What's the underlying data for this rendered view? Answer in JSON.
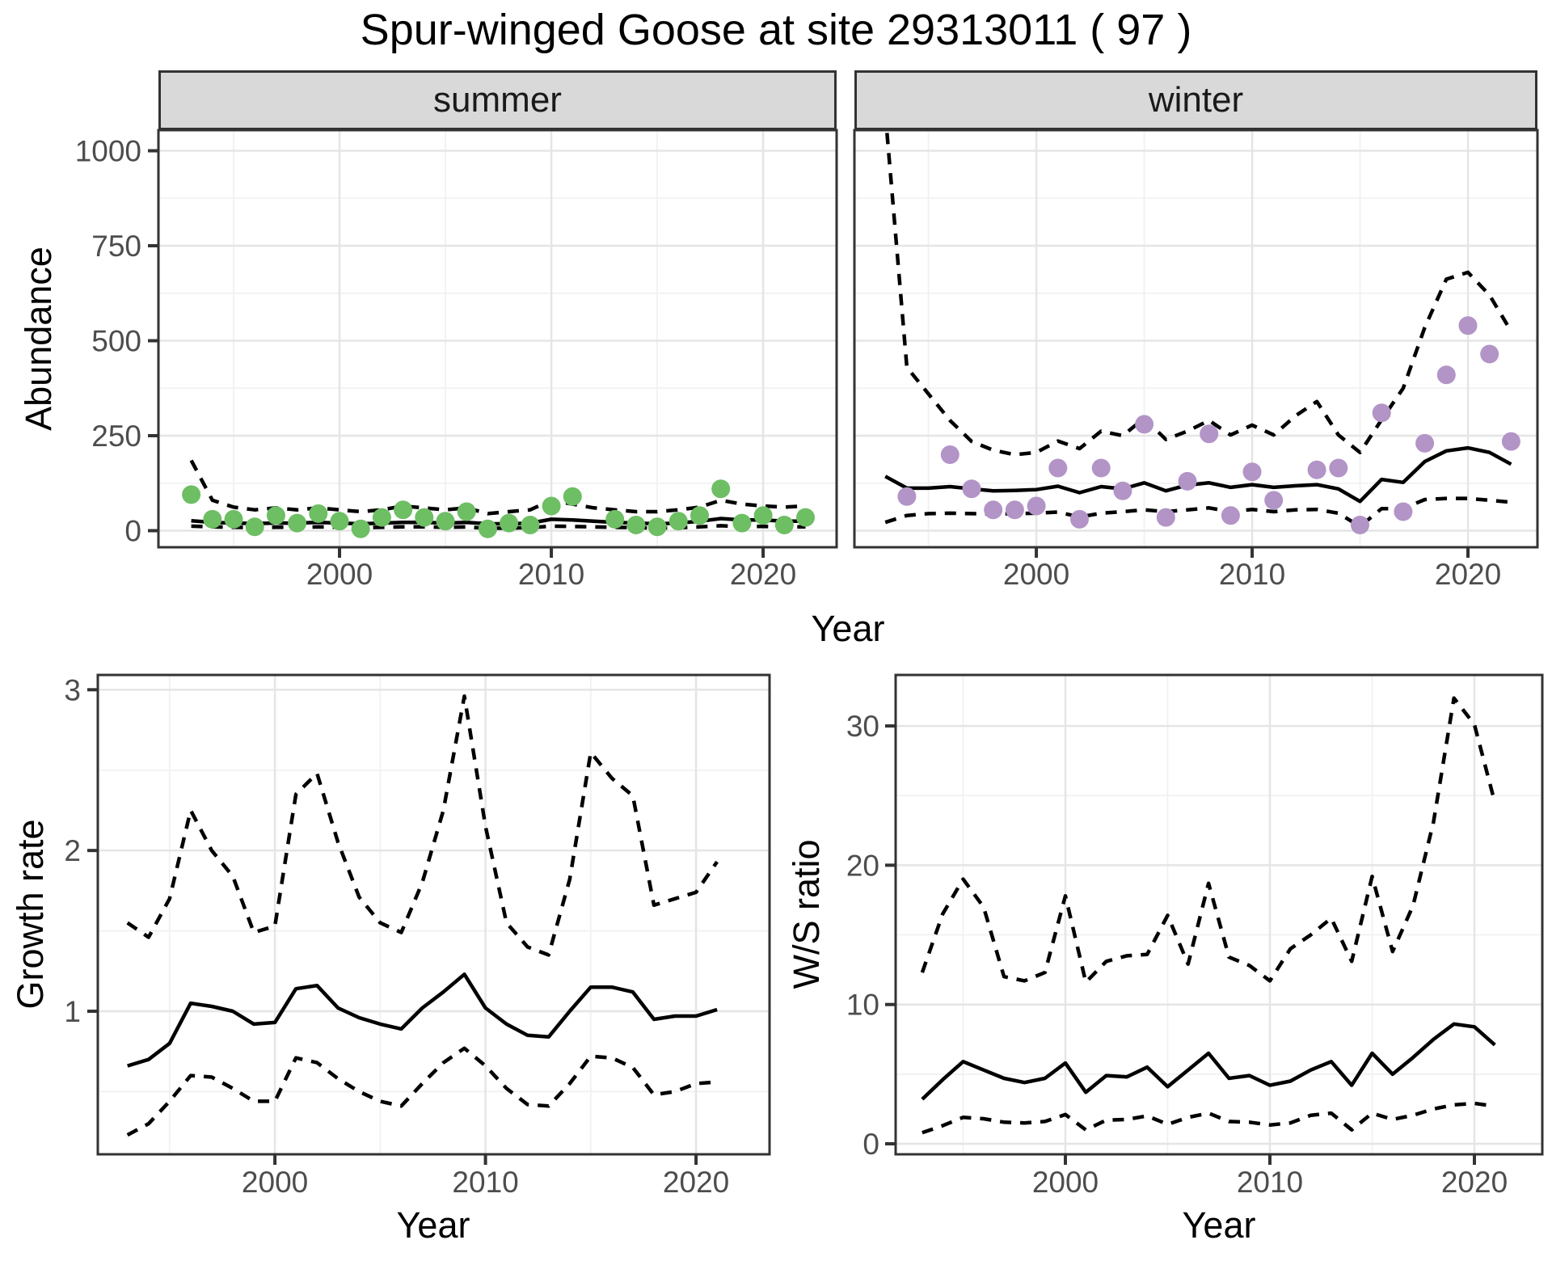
{
  "title": "Spur-winged Goose at site 29313011 ( 97 )",
  "colors": {
    "summer_point": "#6ebe64",
    "winter_point": "#b294c7",
    "line": "#000000",
    "strip_bg": "#d9d9d9",
    "panel_border": "#333333",
    "grid_major": "#e5e5e5",
    "grid_minor": "#f1f1f1",
    "tick_mark": "#333333",
    "tick_label": "#4d4d4d",
    "text": "#111111"
  },
  "chart_data": [
    {
      "id": "summer",
      "type": "scatter",
      "facet_label": "summer",
      "xlabel": "Year",
      "ylabel": "Abundance",
      "ylim": [
        0,
        1050
      ],
      "yticks": [
        0,
        250,
        500,
        750,
        1000
      ],
      "yticks_minor": [
        125,
        375,
        625,
        875
      ],
      "xticks": [
        2000,
        2010,
        2020
      ],
      "xticks_minor": [
        1995,
        2005,
        2015
      ],
      "point_color": "summer_point",
      "years": [
        1993,
        1994,
        1995,
        1996,
        1997,
        1998,
        1999,
        2000,
        2001,
        2002,
        2003,
        2004,
        2005,
        2006,
        2007,
        2008,
        2009,
        2010,
        2011,
        2012,
        2013,
        2014,
        2015,
        2016,
        2017,
        2018,
        2019,
        2020,
        2021,
        2022
      ],
      "points": [
        95,
        30,
        30,
        10,
        40,
        20,
        45,
        25,
        5,
        35,
        55,
        35,
        25,
        50,
        5,
        20,
        15,
        65,
        90,
        null,
        30,
        15,
        10,
        25,
        40,
        110,
        20,
        40,
        15,
        35
      ],
      "mean": [
        26,
        22,
        20,
        19,
        20,
        20,
        22,
        20,
        18,
        20,
        22,
        22,
        20,
        22,
        18,
        18,
        20,
        30,
        28,
        25,
        22,
        20,
        18,
        20,
        25,
        32,
        28,
        28,
        25,
        25
      ],
      "lo": [
        12,
        10,
        9,
        8,
        9,
        9,
        10,
        9,
        8,
        9,
        10,
        10,
        9,
        10,
        6,
        7,
        8,
        12,
        11,
        10,
        9,
        8,
        7,
        8,
        10,
        13,
        11,
        11,
        10,
        10
      ],
      "hi": [
        185,
        80,
        62,
        55,
        60,
        55,
        60,
        55,
        50,
        55,
        65,
        60,
        55,
        60,
        45,
        50,
        55,
        80,
        70,
        60,
        55,
        50,
        50,
        55,
        62,
        80,
        70,
        65,
        62,
        65
      ]
    },
    {
      "id": "winter",
      "type": "scatter",
      "facet_label": "winter",
      "xlabel": "Year",
      "ylabel": "Abundance",
      "ylim": [
        0,
        1050
      ],
      "yticks": [
        0,
        250,
        500,
        750,
        1000
      ],
      "yticks_minor": [
        125,
        375,
        625,
        875
      ],
      "xticks": [
        2000,
        2010,
        2020
      ],
      "xticks_minor": [
        1995,
        2005,
        2015
      ],
      "point_color": "winter_point",
      "years": [
        1993,
        1994,
        1995,
        1996,
        1997,
        1998,
        1999,
        2000,
        2001,
        2002,
        2003,
        2004,
        2005,
        2006,
        2007,
        2008,
        2009,
        2010,
        2011,
        2012,
        2013,
        2014,
        2015,
        2016,
        2017,
        2018,
        2019,
        2020,
        2021,
        2022
      ],
      "points": [
        null,
        90,
        null,
        200,
        110,
        55,
        55,
        65,
        165,
        30,
        165,
        105,
        280,
        35,
        130,
        255,
        40,
        155,
        80,
        null,
        160,
        165,
        15,
        310,
        50,
        230,
        410,
        540,
        465,
        235
      ],
      "mean": [
        143,
        112,
        112,
        116,
        110,
        105,
        106,
        108,
        117,
        100,
        116,
        110,
        126,
        105,
        120,
        126,
        114,
        121,
        114,
        118,
        121,
        110,
        77,
        135,
        127,
        182,
        210,
        218,
        206,
        175
      ],
      "lo": [
        22,
        40,
        45,
        46,
        45,
        44,
        45,
        46,
        49,
        36,
        46,
        50,
        55,
        50,
        55,
        60,
        50,
        56,
        50,
        55,
        56,
        46,
        11,
        58,
        58,
        82,
        85,
        85,
        80,
        75
      ],
      "hi": [
        1100,
        430,
        360,
        290,
        235,
        212,
        200,
        206,
        236,
        216,
        262,
        250,
        296,
        240,
        262,
        290,
        252,
        278,
        252,
        302,
        340,
        252,
        206,
        292,
        375,
        535,
        662,
        680,
        620,
        525
      ]
    },
    {
      "id": "growth",
      "type": "line",
      "facet_label": "",
      "xlabel": "Year",
      "ylabel": "Growth rate",
      "ylim": [
        0.2,
        3.0
      ],
      "yticks": [
        1,
        2,
        3
      ],
      "yticks_minor": [
        0.5,
        1.5,
        2.5
      ],
      "xticks": [
        2000,
        2010,
        2020
      ],
      "xticks_minor": [
        1995,
        2005,
        2015
      ],
      "years": [
        1993,
        1994,
        1995,
        1996,
        1997,
        1998,
        1999,
        2000,
        2001,
        2002,
        2003,
        2004,
        2005,
        2006,
        2007,
        2008,
        2009,
        2010,
        2011,
        2012,
        2013,
        2014,
        2015,
        2016,
        2017,
        2018,
        2019,
        2020,
        2021
      ],
      "mean": [
        0.66,
        0.7,
        0.8,
        1.05,
        1.03,
        1.0,
        0.92,
        0.93,
        1.14,
        1.16,
        1.02,
        0.96,
        0.92,
        0.89,
        1.02,
        1.12,
        1.23,
        1.02,
        0.92,
        0.85,
        0.84,
        1.0,
        1.15,
        1.15,
        1.12,
        0.95,
        0.97,
        0.97,
        1.01
      ],
      "lo": [
        0.23,
        0.3,
        0.44,
        0.6,
        0.59,
        0.52,
        0.44,
        0.44,
        0.71,
        0.68,
        0.58,
        0.5,
        0.44,
        0.41,
        0.55,
        0.68,
        0.77,
        0.66,
        0.52,
        0.42,
        0.41,
        0.55,
        0.72,
        0.71,
        0.65,
        0.48,
        0.5,
        0.55,
        0.56
      ],
      "hi": [
        1.55,
        1.46,
        1.7,
        2.25,
        2.0,
        1.84,
        1.49,
        1.53,
        2.35,
        2.48,
        2.05,
        1.71,
        1.55,
        1.49,
        1.8,
        2.25,
        2.96,
        2.15,
        1.55,
        1.4,
        1.35,
        1.82,
        2.61,
        2.45,
        2.34,
        1.66,
        1.7,
        1.74,
        1.93
      ]
    },
    {
      "id": "ws",
      "type": "line",
      "facet_label": "",
      "xlabel": "Year",
      "ylabel": "W/S ratio",
      "ylim": [
        0,
        32
      ],
      "yticks": [
        0,
        10,
        20,
        30
      ],
      "yticks_minor": [
        5,
        15,
        25
      ],
      "xticks": [
        2000,
        2010,
        2020
      ],
      "xticks_minor": [
        1995,
        2005,
        2015
      ],
      "years": [
        1993,
        1994,
        1995,
        1996,
        1997,
        1998,
        1999,
        2000,
        2001,
        2002,
        2003,
        2004,
        2005,
        2006,
        2007,
        2008,
        2009,
        2010,
        2011,
        2012,
        2013,
        2014,
        2015,
        2016,
        2017,
        2018,
        2019,
        2020,
        2021
      ],
      "mean": [
        3.2,
        4.6,
        5.9,
        5.3,
        4.7,
        4.4,
        4.7,
        5.8,
        3.7,
        4.9,
        4.8,
        5.5,
        4.1,
        5.3,
        6.5,
        4.7,
        4.9,
        4.2,
        4.5,
        5.3,
        5.9,
        4.2,
        6.5,
        5.0,
        6.2,
        7.5,
        8.6,
        8.4,
        7.1
      ],
      "lo": [
        0.8,
        1.3,
        1.9,
        1.8,
        1.55,
        1.5,
        1.6,
        2.1,
        1.0,
        1.7,
        1.75,
        2.0,
        1.4,
        1.9,
        2.2,
        1.6,
        1.55,
        1.35,
        1.5,
        2.05,
        2.2,
        1.0,
        2.2,
        1.75,
        2.05,
        2.5,
        2.8,
        2.9,
        2.7
      ],
      "hi": [
        12.3,
        16.5,
        19.0,
        17.0,
        12.0,
        11.7,
        12.3,
        17.8,
        11.6,
        13.1,
        13.5,
        13.6,
        16.4,
        12.9,
        18.7,
        13.4,
        12.8,
        11.7,
        14.0,
        15.0,
        16.2,
        13.1,
        19.2,
        13.8,
        17.1,
        23.1,
        32.0,
        30.1,
        24.5
      ]
    }
  ]
}
